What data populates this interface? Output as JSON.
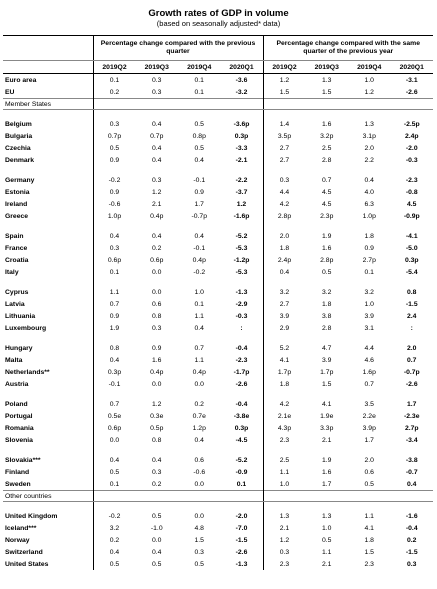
{
  "header": {
    "title": "Growth rates of GDP in volume",
    "subtitle": "(based on seasonally adjusted* data)",
    "group_headers": [
      "Percentage change compared with the previous quarter",
      "Percentage change compared with the same quarter of the previous year"
    ],
    "columns": [
      "2019Q2",
      "2019Q3",
      "2019Q4",
      "2020Q1",
      "2019Q2",
      "2019Q3",
      "2019Q4",
      "2020Q1"
    ]
  },
  "blocks": [
    {
      "groups": [
        [
          [
            "Euro area",
            "0.1",
            "0.3",
            "0.1",
            "-3.6",
            "1.2",
            "1.3",
            "1.0",
            "-3.1"
          ],
          [
            "EU",
            "0.2",
            "0.3",
            "0.1",
            "-3.2",
            "1.5",
            "1.5",
            "1.2",
            "-2.6"
          ]
        ]
      ]
    },
    {
      "label": "Member States",
      "groups": [
        [
          [
            "Belgium",
            "0.3",
            "0.4",
            "0.5",
            "-3.6p",
            "1.4",
            "1.6",
            "1.3",
            "-2.5p"
          ],
          [
            "Bulgaria",
            "0.7p",
            "0.7p",
            "0.8p",
            "0.3p",
            "3.5p",
            "3.2p",
            "3.1p",
            "2.4p"
          ],
          [
            "Czechia",
            "0.5",
            "0.4",
            "0.5",
            "-3.3",
            "2.7",
            "2.5",
            "2.0",
            "-2.0"
          ],
          [
            "Denmark",
            "0.9",
            "0.4",
            "0.4",
            "-2.1",
            "2.7",
            "2.8",
            "2.2",
            "-0.3"
          ]
        ],
        [
          [
            "Germany",
            "-0.2",
            "0.3",
            "-0.1",
            "-2.2",
            "0.3",
            "0.7",
            "0.4",
            "-2.3"
          ],
          [
            "Estonia",
            "0.9",
            "1.2",
            "0.9",
            "-3.7",
            "4.4",
            "4.5",
            "4.0",
            "-0.8"
          ],
          [
            "Ireland",
            "-0.6",
            "2.1",
            "1.7",
            "1.2",
            "4.2",
            "4.5",
            "6.3",
            "4.5"
          ],
          [
            "Greece",
            "1.0p",
            "0.4p",
            "-0.7p",
            "-1.6p",
            "2.8p",
            "2.3p",
            "1.0p",
            "-0.9p"
          ]
        ],
        [
          [
            "Spain",
            "0.4",
            "0.4",
            "0.4",
            "-5.2",
            "2.0",
            "1.9",
            "1.8",
            "-4.1"
          ],
          [
            "France",
            "0.3",
            "0.2",
            "-0.1",
            "-5.3",
            "1.8",
            "1.6",
            "0.9",
            "-5.0"
          ],
          [
            "Croatia",
            "0.6p",
            "0.6p",
            "0.4p",
            "-1.2p",
            "2.4p",
            "2.8p",
            "2.7p",
            "0.3p"
          ],
          [
            "Italy",
            "0.1",
            "0.0",
            "-0.2",
            "-5.3",
            "0.4",
            "0.5",
            "0.1",
            "-5.4"
          ]
        ],
        [
          [
            "Cyprus",
            "1.1",
            "0.0",
            "1.0",
            "-1.3",
            "3.2",
            "3.2",
            "3.2",
            "0.8"
          ],
          [
            "Latvia",
            "0.7",
            "0.6",
            "0.1",
            "-2.9",
            "2.7",
            "1.8",
            "1.0",
            "-1.5"
          ],
          [
            "Lithuania",
            "0.9",
            "0.8",
            "1.1",
            "-0.3",
            "3.9",
            "3.8",
            "3.9",
            "2.4"
          ],
          [
            "Luxembourg",
            "1.9",
            "0.3",
            "0.4",
            ":",
            "2.9",
            "2.8",
            "3.1",
            ":"
          ]
        ],
        [
          [
            "Hungary",
            "0.8",
            "0.9",
            "0.7",
            "-0.4",
            "5.2",
            "4.7",
            "4.4",
            "2.0"
          ],
          [
            "Malta",
            "0.4",
            "1.6",
            "1.1",
            "-2.3",
            "4.1",
            "3.9",
            "4.6",
            "0.7"
          ],
          [
            "Netherlands**",
            "0.3p",
            "0.4p",
            "0.4p",
            "-1.7p",
            "1.7p",
            "1.7p",
            "1.6p",
            "-0.7p"
          ],
          [
            "Austria",
            "-0.1",
            "0.0",
            "0.0",
            "-2.6",
            "1.8",
            "1.5",
            "0.7",
            "-2.6"
          ]
        ],
        [
          [
            "Poland",
            "0.7",
            "1.2",
            "0.2",
            "-0.4",
            "4.2",
            "4.1",
            "3.5",
            "1.7"
          ],
          [
            "Portugal",
            "0.5e",
            "0.3e",
            "0.7e",
            "-3.8e",
            "2.1e",
            "1.9e",
            "2.2e",
            "-2.3e"
          ],
          [
            "Romania",
            "0.6p",
            "0.5p",
            "1.2p",
            "0.3p",
            "4.3p",
            "3.3p",
            "3.9p",
            "2.7p"
          ],
          [
            "Slovenia",
            "0.0",
            "0.8",
            "0.4",
            "-4.5",
            "2.3",
            "2.1",
            "1.7",
            "-3.4"
          ]
        ],
        [
          [
            "Slovakia***",
            "0.4",
            "0.4",
            "0.6",
            "-5.2",
            "2.5",
            "1.9",
            "2.0",
            "-3.8"
          ],
          [
            "Finland",
            "0.5",
            "0.3",
            "-0.6",
            "-0.9",
            "1.1",
            "1.6",
            "0.6",
            "-0.7"
          ],
          [
            "Sweden",
            "0.1",
            "0.2",
            "0.0",
            "0.1",
            "1.0",
            "1.7",
            "0.5",
            "0.4"
          ]
        ]
      ]
    },
    {
      "label": "Other countries",
      "groups": [
        [
          [
            "United Kingdom",
            "-0.2",
            "0.5",
            "0.0",
            "-2.0",
            "1.3",
            "1.3",
            "1.1",
            "-1.6"
          ],
          [
            "Iceland***",
            "3.2",
            "-1.0",
            "4.8",
            "-7.0",
            "2.1",
            "1.0",
            "4.1",
            "-0.4"
          ],
          [
            "Norway",
            "0.2",
            "0.0",
            "1.5",
            "-1.5",
            "1.2",
            "0.5",
            "1.8",
            "0.2"
          ],
          [
            "Switzerland",
            "0.4",
            "0.4",
            "0.3",
            "-2.6",
            "0.3",
            "1.1",
            "1.5",
            "-1.5"
          ],
          [
            "United States",
            "0.5",
            "0.5",
            "0.5",
            "-1.3",
            "2.3",
            "2.1",
            "2.3",
            "0.3"
          ]
        ]
      ]
    }
  ]
}
